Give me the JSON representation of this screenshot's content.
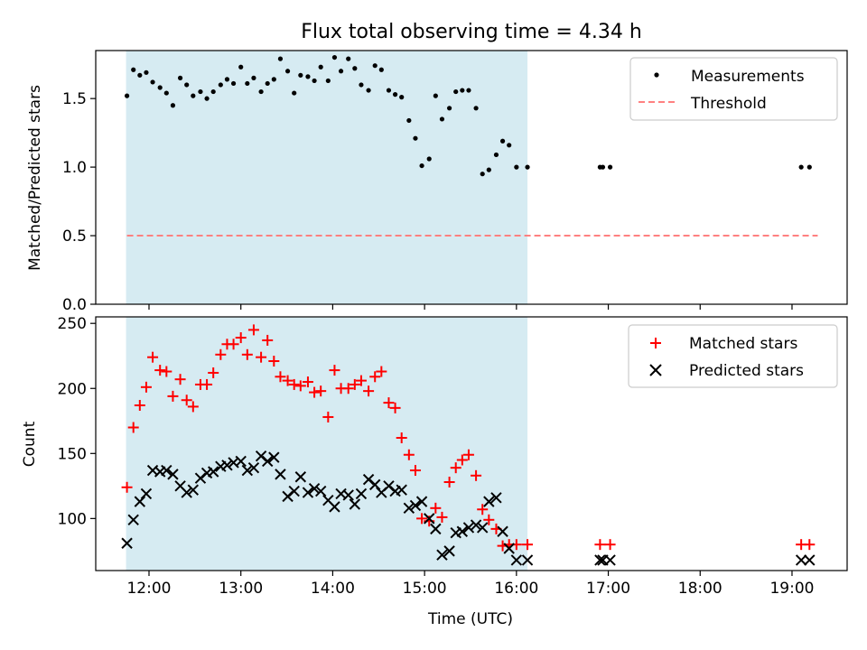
{
  "chart_data": [
    {
      "type": "scatter",
      "title": "Flux total observing time = 4.34 h",
      "xlabel": "",
      "ylabel": "Matched/Predicted stars",
      "ylim": [
        0.0,
        1.85
      ],
      "y_ticks": [
        "0.0",
        "0.5",
        "1.0",
        "1.5"
      ],
      "x_range_hours": [
        11.42,
        19.6
      ],
      "highlight_span_hours": [
        11.75,
        16.12
      ],
      "highlight_color": "#add8e6",
      "legend_position": "top-right",
      "series": [
        {
          "name": "Measurements",
          "marker": "dot",
          "color": "#000000",
          "x": [
            11.76,
            11.83,
            11.9,
            11.97,
            12.04,
            12.12,
            12.19,
            12.26,
            12.34,
            12.41,
            12.48,
            12.56,
            12.63,
            12.7,
            12.78,
            12.85,
            12.92,
            13.0,
            13.07,
            13.14,
            13.22,
            13.29,
            13.36,
            13.43,
            13.51,
            13.58,
            13.65,
            13.73,
            13.8,
            13.87,
            13.95,
            14.02,
            14.09,
            14.17,
            14.24,
            14.31,
            14.39,
            14.46,
            14.53,
            14.61,
            14.68,
            14.75,
            14.83,
            14.9,
            14.97,
            15.05,
            15.12,
            15.19,
            15.27,
            15.34,
            15.41,
            15.48,
            15.56,
            15.63,
            15.7,
            15.78,
            15.85,
            15.92,
            16.0,
            16.12,
            16.91,
            16.94,
            17.02,
            19.1,
            19.19
          ],
          "y": [
            1.52,
            1.71,
            1.67,
            1.69,
            1.62,
            1.58,
            1.54,
            1.45,
            1.65,
            1.6,
            1.52,
            1.55,
            1.5,
            1.55,
            1.6,
            1.64,
            1.61,
            1.73,
            1.61,
            1.65,
            1.55,
            1.61,
            1.64,
            1.79,
            1.7,
            1.54,
            1.67,
            1.66,
            1.63,
            1.73,
            1.63,
            1.8,
            1.7,
            1.79,
            1.72,
            1.6,
            1.56,
            1.74,
            1.71,
            1.56,
            1.53,
            1.51,
            1.34,
            1.21,
            1.01,
            1.06,
            1.52,
            1.35,
            1.43,
            1.55,
            1.56,
            1.56,
            1.43,
            0.95,
            0.98,
            1.09,
            1.19,
            1.16,
            1.0,
            1.0,
            1.0,
            1.0,
            1.0,
            1.0,
            1.0
          ]
        },
        {
          "name": "Threshold",
          "marker": "dashed-line",
          "color": "#ff8080",
          "x": [
            11.76,
            19.28
          ],
          "y": [
            0.5,
            0.5
          ]
        }
      ]
    },
    {
      "type": "scatter",
      "title": "",
      "xlabel": "Time (UTC)",
      "ylabel": "Count",
      "ylim": [
        60,
        255
      ],
      "y_ticks": [
        "100",
        "150",
        "200",
        "250"
      ],
      "x_ticks": [
        "12:00",
        "13:00",
        "14:00",
        "15:00",
        "16:00",
        "17:00",
        "18:00",
        "19:00"
      ],
      "x_range_hours": [
        11.42,
        19.6
      ],
      "highlight_span_hours": [
        11.75,
        16.12
      ],
      "highlight_color": "#add8e6",
      "legend_position": "top-right",
      "series": [
        {
          "name": "Matched stars",
          "marker": "plus",
          "color": "#ff0000",
          "x": [
            11.76,
            11.83,
            11.9,
            11.97,
            12.04,
            12.12,
            12.19,
            12.26,
            12.34,
            12.41,
            12.48,
            12.56,
            12.63,
            12.7,
            12.78,
            12.85,
            12.92,
            13.0,
            13.07,
            13.14,
            13.22,
            13.29,
            13.36,
            13.43,
            13.51,
            13.58,
            13.65,
            13.73,
            13.8,
            13.87,
            13.95,
            14.02,
            14.09,
            14.17,
            14.24,
            14.31,
            14.39,
            14.46,
            14.53,
            14.61,
            14.68,
            14.75,
            14.83,
            14.9,
            14.97,
            15.05,
            15.12,
            15.19,
            15.27,
            15.34,
            15.41,
            15.48,
            15.56,
            15.63,
            15.7,
            15.78,
            15.85,
            15.92,
            16.0,
            16.12,
            16.91,
            17.02,
            19.1,
            19.19
          ],
          "y": [
            124,
            170,
            187,
            201,
            224,
            214,
            213,
            194,
            207,
            191,
            186,
            203,
            203,
            212,
            226,
            234,
            234,
            239,
            226,
            245,
            224,
            237,
            221,
            209,
            206,
            203,
            202,
            205,
            197,
            198,
            178,
            214,
            200,
            200,
            203,
            206,
            198,
            209,
            213,
            189,
            185,
            162,
            149,
            137,
            100,
            98,
            108,
            101,
            128,
            139,
            145,
            149,
            133,
            107,
            99,
            92,
            79,
            80,
            80,
            80,
            80,
            80,
            80,
            80
          ]
        },
        {
          "name": "Predicted stars",
          "marker": "x",
          "color": "#000000",
          "x": [
            11.76,
            11.83,
            11.9,
            11.97,
            12.04,
            12.12,
            12.19,
            12.26,
            12.34,
            12.41,
            12.48,
            12.56,
            12.63,
            12.7,
            12.78,
            12.85,
            12.92,
            13.0,
            13.07,
            13.14,
            13.22,
            13.29,
            13.36,
            13.43,
            13.51,
            13.58,
            13.65,
            13.73,
            13.8,
            13.87,
            13.95,
            14.02,
            14.09,
            14.17,
            14.24,
            14.31,
            14.39,
            14.46,
            14.53,
            14.61,
            14.68,
            14.75,
            14.83,
            14.9,
            14.97,
            15.05,
            15.12,
            15.19,
            15.27,
            15.34,
            15.41,
            15.48,
            15.56,
            15.63,
            15.7,
            15.78,
            15.85,
            15.92,
            16.0,
            16.12,
            16.91,
            16.94,
            17.02,
            19.1,
            19.19
          ],
          "y": [
            81,
            99,
            113,
            119,
            137,
            136,
            137,
            134,
            125,
            120,
            122,
            131,
            135,
            136,
            140,
            141,
            143,
            144,
            137,
            139,
            148,
            144,
            147,
            134,
            117,
            121,
            132,
            120,
            123,
            121,
            114,
            109,
            119,
            118,
            111,
            119,
            130,
            126,
            120,
            125,
            121,
            122,
            108,
            110,
            113,
            100,
            92,
            72,
            75,
            89,
            90,
            93,
            95,
            93,
            113,
            116,
            90,
            77,
            68,
            68,
            68,
            68,
            68,
            68,
            68
          ]
        }
      ]
    }
  ]
}
